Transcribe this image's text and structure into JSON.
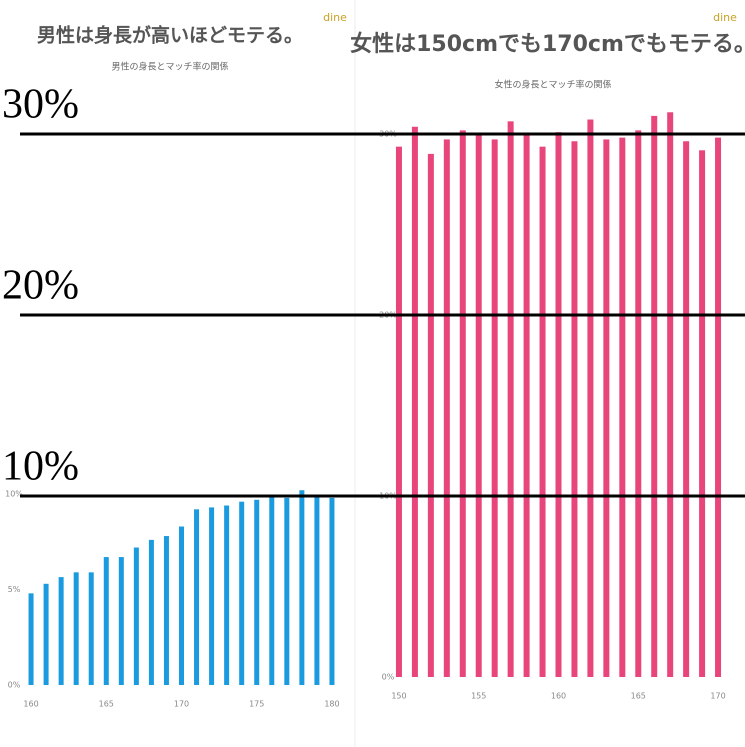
{
  "chart_data": [
    {
      "type": "bar",
      "title": "男性は身長が高いほどモテる。",
      "subtitle": "男性の身長とマッチ率の関係",
      "logo": "dine",
      "x": [
        160,
        161,
        162,
        163,
        164,
        165,
        166,
        167,
        168,
        169,
        170,
        171,
        172,
        173,
        174,
        175,
        176,
        177,
        178,
        179,
        180
      ],
      "values": [
        4.8,
        5.3,
        5.65,
        5.9,
        5.9,
        6.7,
        6.7,
        7.2,
        7.6,
        7.8,
        8.3,
        9.2,
        9.3,
        9.4,
        9.6,
        9.7,
        9.9,
        9.8,
        10.2,
        9.9,
        9.8
      ],
      "color": "#1a9be0",
      "xlim": [
        159,
        181
      ],
      "xticks": [
        160,
        165,
        170,
        175,
        180
      ],
      "ylim": [
        0,
        10.5
      ],
      "yticks": [
        {
          "value": 0,
          "label": "0%"
        },
        {
          "value": 5,
          "label": "5%"
        },
        {
          "value": 10,
          "label": "10%"
        }
      ],
      "grid": false
    },
    {
      "type": "bar",
      "title": "女性は150cmでも170cmでもモテる。",
      "subtitle": "女性の身長とマッチ率の関係",
      "logo": "dine",
      "x": [
        150,
        151,
        152,
        153,
        154,
        155,
        156,
        157,
        158,
        159,
        160,
        161,
        162,
        163,
        164,
        165,
        166,
        167,
        168,
        169,
        170
      ],
      "values": [
        29.3,
        30.4,
        28.9,
        29.7,
        30.2,
        30.0,
        29.7,
        30.7,
        30.0,
        29.3,
        30.1,
        29.6,
        30.8,
        29.7,
        29.8,
        30.2,
        31.0,
        31.2,
        29.6,
        29.1,
        29.8
      ],
      "color": "#e8457a",
      "xlim": [
        149,
        171
      ],
      "xticks": [
        150,
        155,
        160,
        165,
        170
      ],
      "ylim": [
        0,
        32
      ],
      "yticks": [
        {
          "value": 0,
          "label": "0%"
        },
        {
          "value": 10,
          "label": "10%"
        },
        {
          "value": 20,
          "label": "20%"
        },
        {
          "value": 30,
          "label": "30%"
        }
      ],
      "grid": false
    }
  ],
  "overlay": {
    "ticks": [
      {
        "value": 30,
        "label": "30%"
      },
      {
        "value": 20,
        "label": "20%"
      },
      {
        "value": 10,
        "label": "10%"
      }
    ]
  }
}
